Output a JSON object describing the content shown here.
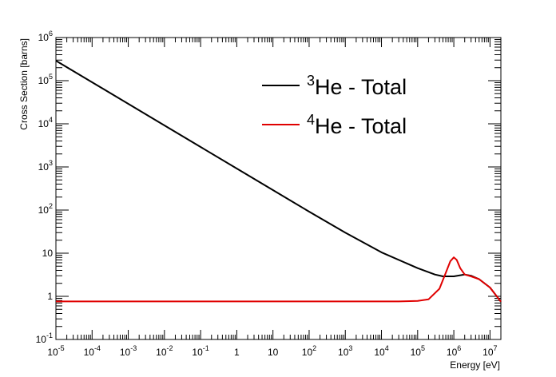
{
  "chart_data": {
    "type": "line",
    "title": "",
    "xlabel": "Energy [eV]",
    "ylabel": "Cross Section [barns]",
    "xscale": "log",
    "yscale": "log",
    "xlim": [
      1e-05,
      20000000.0
    ],
    "ylim": [
      0.1,
      1000000
    ],
    "grid": false,
    "legend_position": "top-right",
    "x_tick_labels": [
      {
        "base": "10",
        "exp": "-5"
      },
      {
        "base": "10",
        "exp": "-4"
      },
      {
        "base": "10",
        "exp": "-3"
      },
      {
        "base": "10",
        "exp": "-2"
      },
      {
        "base": "10",
        "exp": "-1"
      },
      {
        "base": "1",
        "exp": ""
      },
      {
        "base": "10",
        "exp": ""
      },
      {
        "base": "10",
        "exp": "2"
      },
      {
        "base": "10",
        "exp": "3"
      },
      {
        "base": "10",
        "exp": "4"
      },
      {
        "base": "10",
        "exp": "5"
      },
      {
        "base": "10",
        "exp": "6"
      },
      {
        "base": "10",
        "exp": "7"
      }
    ],
    "y_tick_labels": [
      {
        "base": "10",
        "exp": "-1"
      },
      {
        "base": "1",
        "exp": ""
      },
      {
        "base": "10",
        "exp": ""
      },
      {
        "base": "10",
        "exp": "2"
      },
      {
        "base": "10",
        "exp": "3"
      },
      {
        "base": "10",
        "exp": "4"
      },
      {
        "base": "10",
        "exp": "5"
      },
      {
        "base": "10",
        "exp": "6"
      }
    ],
    "series": [
      {
        "name": "3He - Total",
        "name_sup": "3",
        "name_rest": "He - Total",
        "color": "#000000",
        "points": [
          [
            1e-05,
            290000
          ],
          [
            0.0001,
            92000
          ],
          [
            0.001,
            29000
          ],
          [
            0.01,
            9200
          ],
          [
            0.1,
            2900
          ],
          [
            1,
            920
          ],
          [
            10,
            290
          ],
          [
            100,
            92
          ],
          [
            1000,
            30
          ],
          [
            10000,
            10.5
          ],
          [
            100000,
            4.5
          ],
          [
            300000,
            3.2
          ],
          [
            500000,
            2.9
          ],
          [
            1000000,
            2.9
          ],
          [
            2000000,
            3.2
          ],
          [
            3000000,
            3.0
          ],
          [
            5000000,
            2.5
          ],
          [
            10000000,
            1.6
          ],
          [
            20000000,
            0.75
          ]
        ]
      },
      {
        "name": "4He - Total",
        "name_sup": "4",
        "name_rest": "He - Total",
        "color": "#e00000",
        "points": [
          [
            1e-05,
            0.76
          ],
          [
            10,
            0.76
          ],
          [
            1000,
            0.76
          ],
          [
            30000,
            0.76
          ],
          [
            50000,
            0.77
          ],
          [
            100000,
            0.78
          ],
          [
            200000,
            0.85
          ],
          [
            400000,
            1.5
          ],
          [
            600000,
            3.5
          ],
          [
            800000,
            6.5
          ],
          [
            1000000,
            8.0
          ],
          [
            1200000,
            7.0
          ],
          [
            1500000,
            4.5
          ],
          [
            2000000,
            3.2
          ],
          [
            3000000,
            2.9
          ],
          [
            5000000,
            2.5
          ],
          [
            10000000,
            1.6
          ],
          [
            20000000,
            0.75
          ]
        ]
      }
    ]
  }
}
